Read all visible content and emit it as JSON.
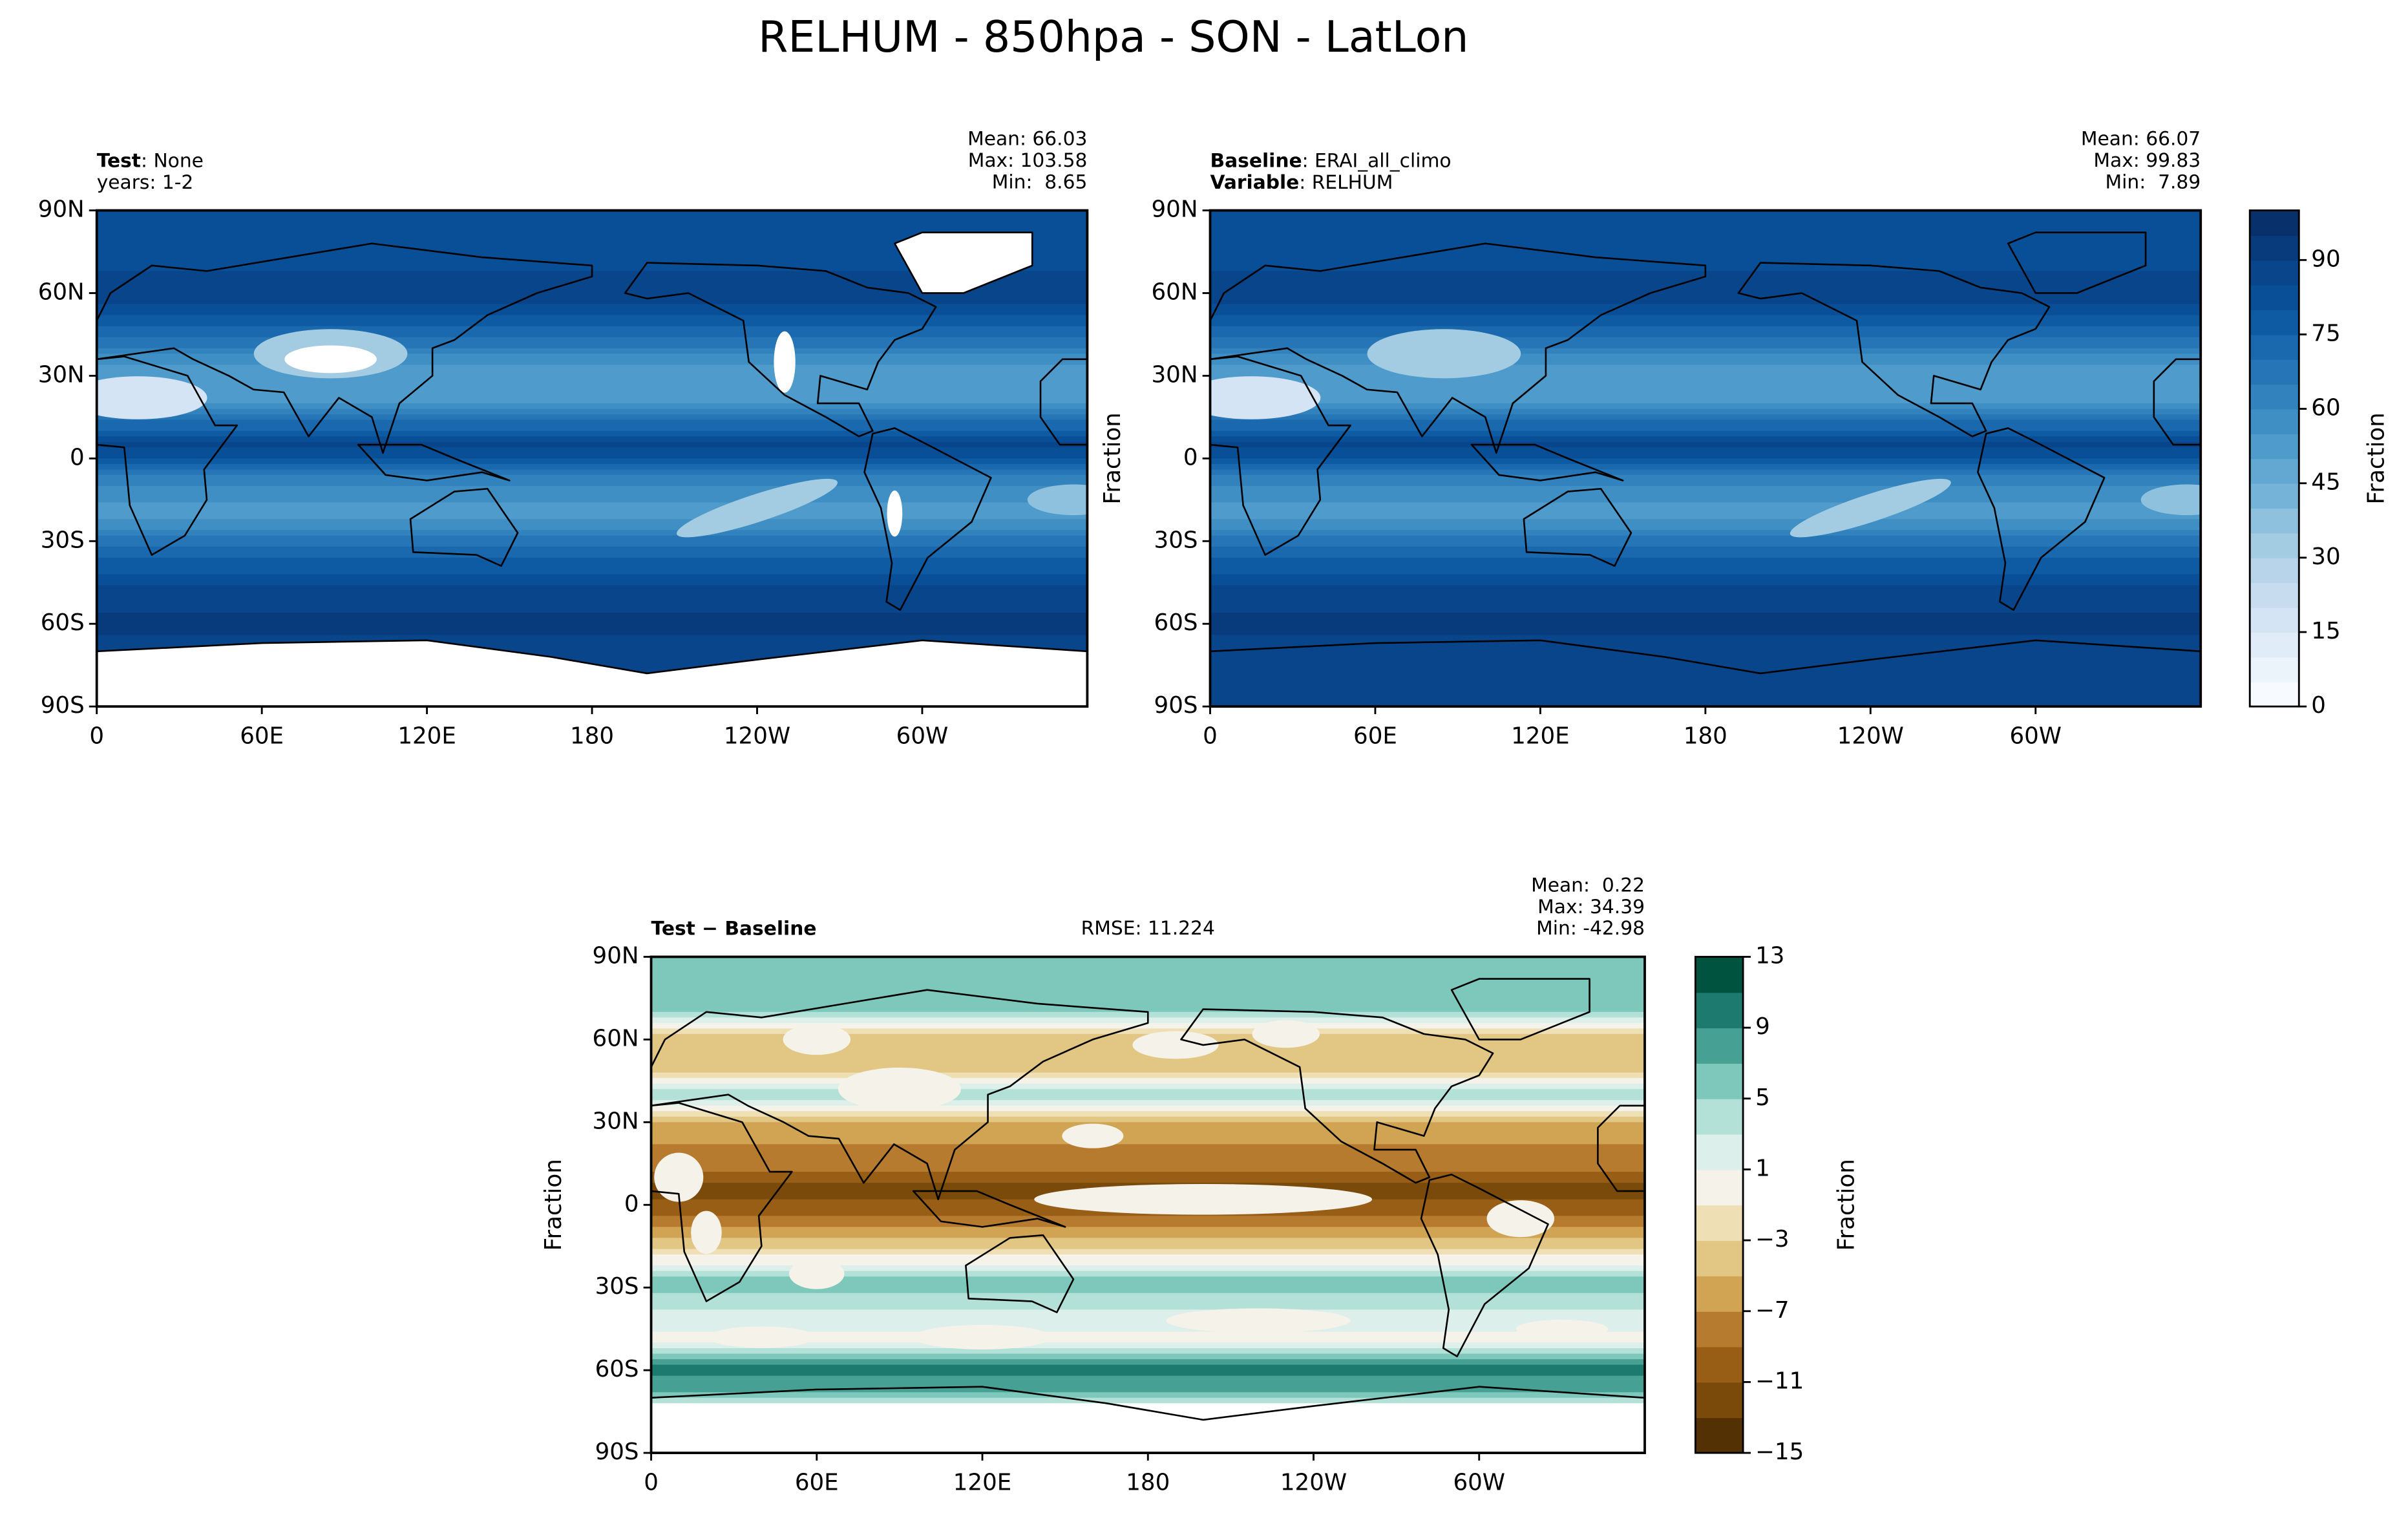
{
  "title": "RELHUM - 850hpa - SON - LatLon",
  "chart_data": [
    {
      "type": "map",
      "left_lines": [
        [
          {
            "text": "Test",
            "bold": true
          },
          {
            "text": ": None"
          }
        ],
        [
          {
            "text": "years: 1-2"
          }
        ]
      ],
      "stats": [
        "Mean: 66.03",
        "Max: 103.58",
        "Min:  8.65"
      ],
      "xlim": [
        0,
        360
      ],
      "ylim": [
        -90,
        90
      ],
      "xticks": [
        0,
        {
          "value": 60,
          "label": "60E"
        },
        {
          "value": 120,
          "label": "120E"
        },
        180,
        {
          "value": 240,
          "label": "120W"
        },
        {
          "value": 300,
          "label": "60W"
        }
      ],
      "yticks": [
        {
          "value": -90,
          "label": "90S"
        },
        {
          "value": -60,
          "label": "60S"
        },
        {
          "value": -30,
          "label": "30S"
        },
        0,
        {
          "value": 30,
          "label": "30N"
        },
        {
          "value": 60,
          "label": "60N"
        },
        {
          "value": 90,
          "label": "90N"
        }
      ]
    },
    {
      "type": "map",
      "left_lines": [
        [
          {
            "text": "Baseline",
            "bold": true
          },
          {
            "text": ": ERAI_all_climo"
          }
        ],
        [
          {
            "text": "Variable",
            "bold": true
          },
          {
            "text": ": RELHUM"
          }
        ]
      ],
      "stats": [
        "Mean: 66.07",
        "Max: 99.83",
        "Min:  7.89"
      ],
      "ylabel": "Fraction",
      "xlim": [
        0,
        360
      ],
      "ylim": [
        -90,
        90
      ],
      "xticks": [
        0,
        {
          "value": 60,
          "label": "60E"
        },
        {
          "value": 120,
          "label": "120E"
        },
        180,
        {
          "value": 240,
          "label": "120W"
        },
        {
          "value": 300,
          "label": "60W"
        }
      ],
      "yticks": [
        {
          "value": -90,
          "label": "90S"
        },
        {
          "value": -60,
          "label": "60S"
        },
        {
          "value": -30,
          "label": "30S"
        },
        0,
        {
          "value": 30,
          "label": "30N"
        },
        {
          "value": 60,
          "label": "60N"
        },
        {
          "value": 90,
          "label": "90N"
        }
      ],
      "colorbar": {
        "label": "Fraction",
        "lim": [
          0,
          100
        ],
        "ticks": [
          0,
          15,
          30,
          45,
          60,
          75,
          90
        ],
        "levels": [
          0,
          5,
          10,
          15,
          20,
          25,
          30,
          35,
          40,
          45,
          50,
          55,
          60,
          65,
          70,
          75,
          80,
          85,
          90,
          95,
          100
        ],
        "colors": [
          "#f7fbff",
          "#ebf3fb",
          "#e0ecf8",
          "#d4e4f4",
          "#c8dcf0",
          "#b7d4ea",
          "#a3cce3",
          "#8dc1dd",
          "#75b4d8",
          "#62a8d2",
          "#4f9bcb",
          "#3f8fc5",
          "#3282be",
          "#2575b7",
          "#1a68ae",
          "#0f5ba3",
          "#084f98",
          "#08458a",
          "#083b7c",
          "#08306b"
        ]
      }
    },
    {
      "type": "map",
      "left_lines": [
        [
          {
            "text": "Test − Baseline",
            "bold": true
          }
        ]
      ],
      "center_text": "RMSE: 11.224",
      "stats": [
        "Mean:  0.22",
        "Max: 34.39",
        "Min: -42.98"
      ],
      "ylabel": "Fraction",
      "xlim": [
        0,
        360
      ],
      "ylim": [
        -90,
        90
      ],
      "xticks": [
        0,
        {
          "value": 60,
          "label": "60E"
        },
        {
          "value": 120,
          "label": "120E"
        },
        180,
        {
          "value": 240,
          "label": "120W"
        },
        {
          "value": 300,
          "label": "60W"
        }
      ],
      "yticks": [
        {
          "value": -90,
          "label": "90S"
        },
        {
          "value": -60,
          "label": "60S"
        },
        {
          "value": -30,
          "label": "30S"
        },
        0,
        {
          "value": 30,
          "label": "30N"
        },
        {
          "value": 60,
          "label": "60N"
        },
        {
          "value": 90,
          "label": "90N"
        }
      ],
      "colorbar": {
        "label": "Fraction",
        "lim": [
          -15,
          13
        ],
        "ticks": [
          {
            "value": -15,
            "label": "−15"
          },
          {
            "value": -11,
            "label": "−11"
          },
          {
            "value": -7,
            "label": "−7"
          },
          {
            "value": -3,
            "label": "−3"
          },
          1,
          5,
          9,
          13
        ],
        "levels": [
          -15,
          -13,
          -11,
          -9,
          -7,
          -5,
          -3,
          -1,
          1,
          3,
          5,
          7,
          9,
          11,
          13
        ],
        "colors": [
          "#543005",
          "#7a4a0b",
          "#985e16",
          "#b67b2e",
          "#d0a452",
          "#e2c784",
          "#efdfb4",
          "#f5f2ea",
          "#dcefea",
          "#b3e1d7",
          "#7ec8bb",
          "#46a093",
          "#1d7a6f",
          "#00543f"
        ]
      }
    }
  ]
}
